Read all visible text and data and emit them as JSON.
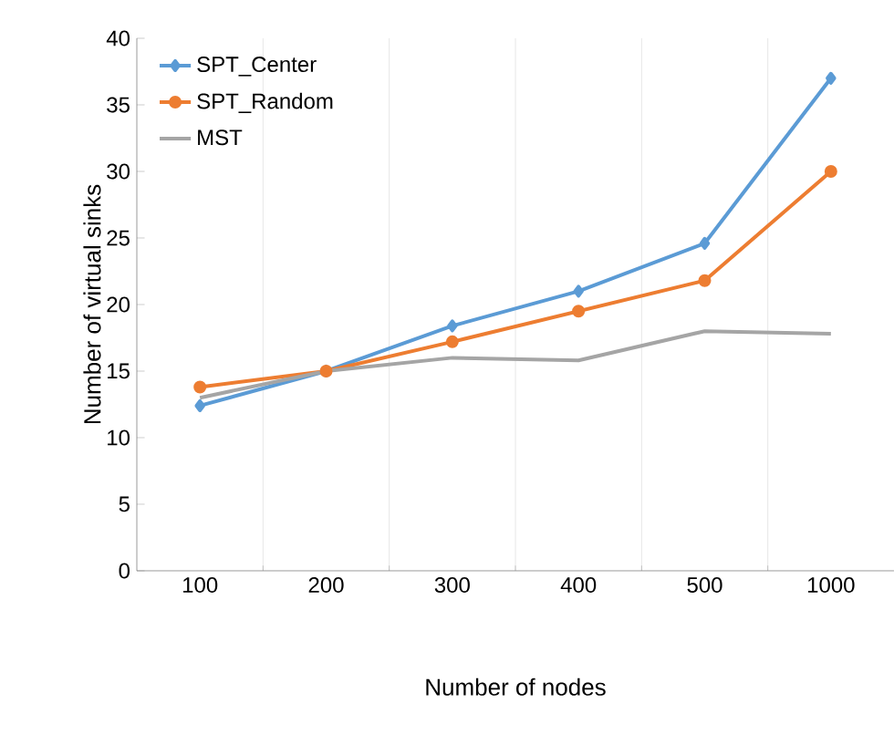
{
  "chart_data": {
    "type": "line",
    "xlabel": "Number of nodes",
    "ylabel": "Number of virtual sinks",
    "categories": [
      "100",
      "200",
      "300",
      "400",
      "500",
      "1000"
    ],
    "series": [
      {
        "name": "SPT_Center",
        "color": "#5b9bd5",
        "marker": "diamond",
        "values": [
          12.4,
          15,
          18.4,
          21,
          24.6,
          37
        ]
      },
      {
        "name": "SPT_Random",
        "color": "#ed7d31",
        "marker": "circle",
        "values": [
          13.8,
          15,
          17.2,
          19.5,
          21.8,
          30
        ]
      },
      {
        "name": "MST",
        "color": "#a5a5a5",
        "marker": "none",
        "values": [
          13,
          15,
          16,
          15.8,
          18,
          17.8
        ]
      }
    ],
    "ylim": [
      0,
      40
    ],
    "yticks": [
      0,
      5,
      10,
      15,
      20,
      25,
      30,
      35,
      40
    ],
    "grid": "x",
    "legend": "top left"
  }
}
